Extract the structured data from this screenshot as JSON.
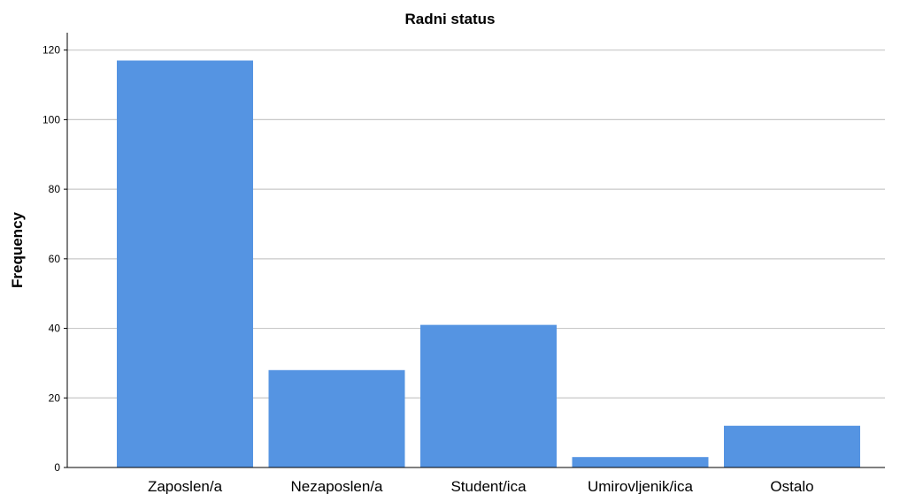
{
  "chart_data": {
    "type": "bar",
    "title": "Radni status",
    "xlabel": "",
    "ylabel": "Frequency",
    "categories": [
      "Zaposlen/a",
      "Nezaposlen/a",
      "Student/ica",
      "Umirovljenik/ica",
      "Ostalo"
    ],
    "values": [
      117,
      28,
      41,
      3,
      12
    ],
    "ylim": [
      0,
      125
    ],
    "yticks": [
      0,
      20,
      40,
      60,
      80,
      100,
      120
    ],
    "grid": true,
    "bar_color": "#5594e2",
    "grid_color": "#c8c8c8",
    "axis_color": "#000000"
  }
}
